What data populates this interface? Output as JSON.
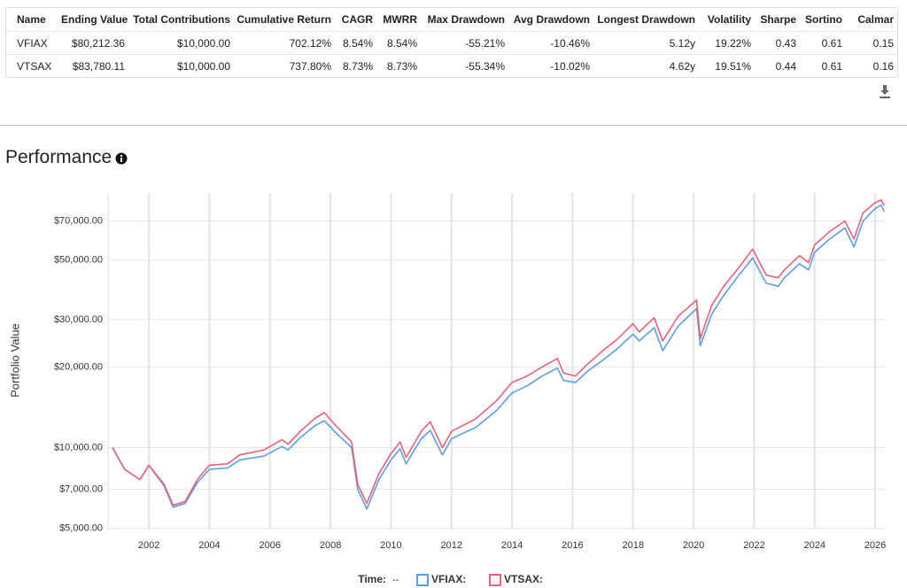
{
  "table": {
    "columns": [
      "Name",
      "Ending Value",
      "Total Contributions",
      "Cumulative Return",
      "CAGR",
      "MWRR",
      "Max Drawdown",
      "Avg Drawdown",
      "Longest Drawdown",
      "Volatility",
      "Sharpe",
      "Sortino",
      "Calmar"
    ],
    "rows": [
      [
        "VFIAX",
        "$80,212.36",
        "$10,000.00",
        "702.12%",
        "8.54%",
        "8.54%",
        "-55.21%",
        "-10.46%",
        "5.12y",
        "19.22%",
        "0.43",
        "0.61",
        "0.15"
      ],
      [
        "VTSAX",
        "$83,780.11",
        "$10,000.00",
        "737.80%",
        "8.73%",
        "8.73%",
        "-55.34%",
        "-10.02%",
        "4.62y",
        "19.51%",
        "0.44",
        "0.61",
        "0.16"
      ]
    ]
  },
  "section_title": "Performance",
  "chart_data": {
    "type": "line",
    "y_label": "Portfolio Value",
    "log_y": true,
    "grid": true,
    "legend_label": "Time:",
    "legend_value": "--",
    "x": [
      2000.8,
      2001.2,
      2001.7,
      2002.0,
      2002.5,
      2002.8,
      2003.2,
      2003.6,
      2004.0,
      2004.6,
      2005.0,
      2005.8,
      2006.4,
      2006.6,
      2007.0,
      2007.5,
      2007.8,
      2008.2,
      2008.7,
      2008.9,
      2009.2,
      2009.6,
      2010.0,
      2010.3,
      2010.5,
      2011.0,
      2011.3,
      2011.7,
      2012.0,
      2012.8,
      2013.5,
      2014.0,
      2014.5,
      2015.0,
      2015.5,
      2015.7,
      2016.1,
      2016.5,
      2017.0,
      2017.5,
      2018.0,
      2018.2,
      2018.7,
      2018.98,
      2019.5,
      2020.1,
      2020.22,
      2020.6,
      2021.0,
      2021.5,
      2021.95,
      2022.4,
      2022.8,
      2023.0,
      2023.5,
      2023.8,
      2024.0,
      2024.5,
      2025.0,
      2025.3,
      2025.6,
      2026.0,
      2026.2,
      2026.3
    ],
    "series": [
      {
        "name": "VFIAX:",
        "color": "#5b9fe3",
        "values": [
          10000,
          8300,
          7600,
          8600,
          7200,
          6000,
          6200,
          7400,
          8300,
          8400,
          9000,
          9300,
          10100,
          9800,
          10900,
          12100,
          12600,
          11300,
          10000,
          7000,
          5900,
          7600,
          9000,
          9900,
          8700,
          10800,
          11600,
          9400,
          10800,
          11900,
          13800,
          16000,
          17000,
          18500,
          19800,
          17800,
          17500,
          19300,
          21200,
          23500,
          26500,
          25000,
          28000,
          23000,
          28500,
          33000,
          24000,
          31500,
          37000,
          44000,
          51000,
          41000,
          40000,
          43000,
          48500,
          46000,
          53500,
          60000,
          66000,
          56000,
          70000,
          78000,
          80212,
          76000
        ]
      },
      {
        "name": "VTSAX:",
        "color": "#e8607a",
        "values": [
          10000,
          8300,
          7600,
          8600,
          7300,
          6100,
          6300,
          7600,
          8600,
          8700,
          9400,
          9800,
          10700,
          10300,
          11500,
          12900,
          13500,
          12000,
          10500,
          7300,
          6200,
          8000,
          9500,
          10500,
          9200,
          11500,
          12500,
          10000,
          11500,
          12800,
          15000,
          17500,
          18500,
          20000,
          21500,
          19000,
          18500,
          20500,
          23000,
          25500,
          29000,
          27000,
          30500,
          25000,
          31000,
          35500,
          25500,
          34000,
          40000,
          47000,
          55000,
          44000,
          43000,
          46000,
          52000,
          49000,
          57000,
          64000,
          70000,
          60000,
          75000,
          82000,
          83780,
          80000
        ]
      }
    ],
    "xlim": [
      2000.65,
      2026.35
    ],
    "xticks": [
      2002,
      2004,
      2006,
      2008,
      2010,
      2012,
      2014,
      2016,
      2018,
      2020,
      2022,
      2024,
      2026
    ],
    "ylim": [
      4950,
      89000
    ],
    "yticks": [
      {
        "value": 5000,
        "label": "$5,000.00"
      },
      {
        "value": 7000,
        "label": "$7,000.00"
      },
      {
        "value": 10000,
        "label": "$10,000.00"
      },
      {
        "value": 20000,
        "label": "$20,000.00"
      },
      {
        "value": 30000,
        "label": "$30,000.00"
      },
      {
        "value": 50000,
        "label": "$50,000.00"
      },
      {
        "value": 70000,
        "label": "$70,000.00"
      }
    ]
  }
}
